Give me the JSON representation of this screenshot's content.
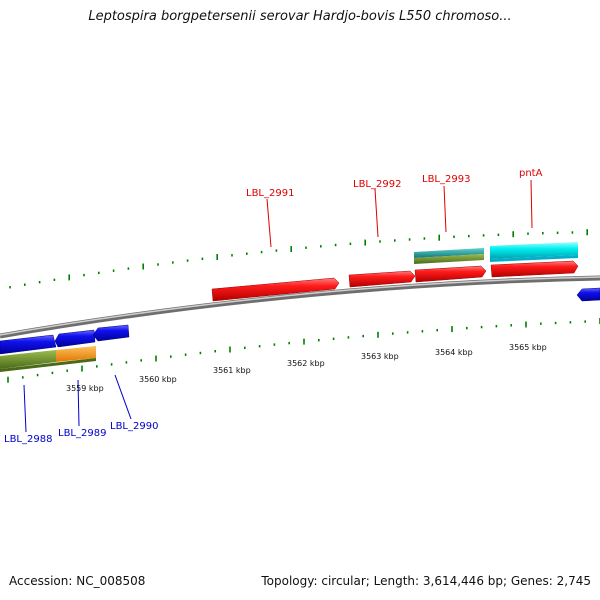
{
  "title": "Leptospira borgpetersenii serovar Hardjo-bovis L550 chromoso...",
  "footer": {
    "accession": "Accession: NC_008508",
    "summary": "Topology: circular; Length: 3,614,446 bp; Genes: 2,745"
  },
  "scale_labels": [
    "3559 kbp",
    "3560 kbp",
    "3561 kbp",
    "3562 kbp",
    "3563 kbp",
    "3564 kbp",
    "3565 kbp"
  ],
  "gene_labels_top": [
    "LBL_2991",
    "LBL_2992",
    "LBL_2993",
    "pntA"
  ],
  "gene_labels_bottom": [
    "LBL_2988",
    "LBL_2989",
    "LBL_2990"
  ],
  "colors": {
    "forward_gene": "#ff0000",
    "reverse_gene": "#0000ee",
    "rna_cyan": "#00e5ee",
    "teal": "#20b2aa",
    "olive": "#6b8e23",
    "orange": "#ff9900",
    "backbone": "#808080",
    "tick": "#008000",
    "top_label": "#dd0000",
    "bottom_label": "#0000cc"
  }
}
